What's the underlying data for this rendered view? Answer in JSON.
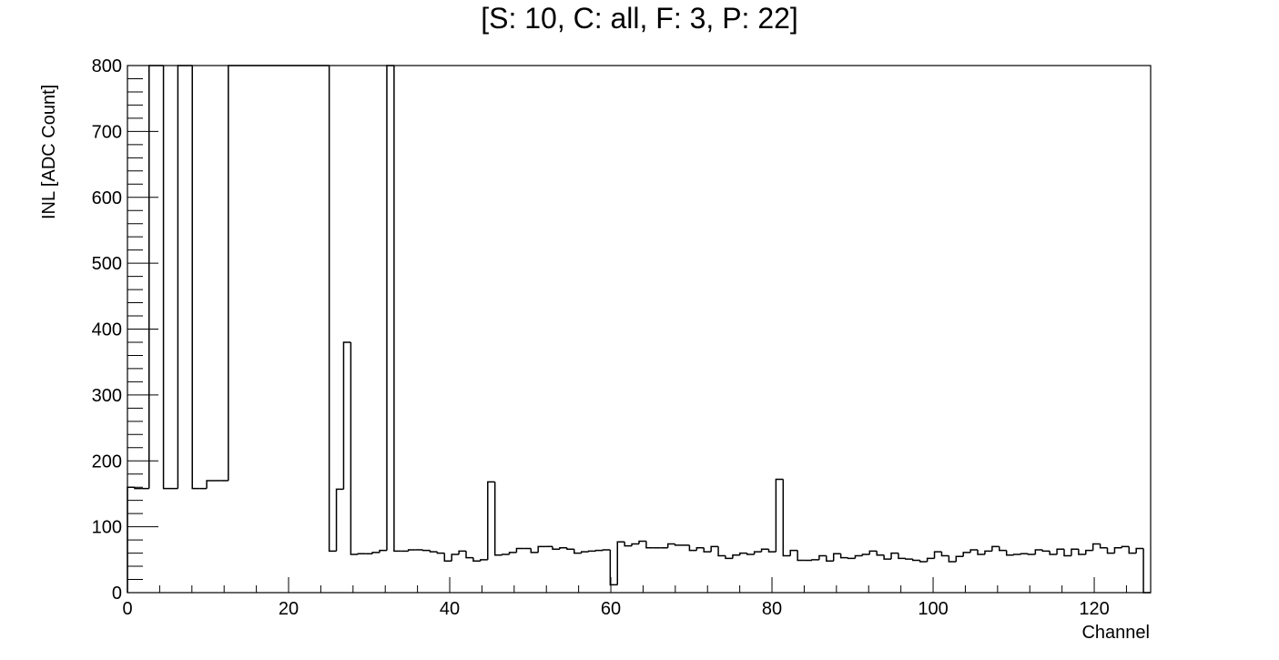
{
  "chart_data": {
    "type": "histogram",
    "title": "[S: 10, C: all, F: 3, P: 22]",
    "xlabel": "Channel",
    "ylabel": "INL [ADC Count]",
    "xlim": [
      0,
      127
    ],
    "ylim": [
      0,
      800
    ],
    "x_ticks": [
      "0",
      "20",
      "40",
      "60",
      "80",
      "100",
      "120"
    ],
    "y_ticks": [
      "0",
      "100",
      "200",
      "300",
      "400",
      "500",
      "600",
      "700",
      "800"
    ],
    "grid": false,
    "legend": "none",
    "line_color": "#000000",
    "bin_width": 1,
    "x_start": 0,
    "values": [
      160,
      158,
      158,
      800,
      800,
      158,
      158,
      800,
      800,
      158,
      158,
      170,
      170,
      170,
      800,
      800,
      800,
      800,
      800,
      800,
      800,
      800,
      800,
      800,
      800,
      800,
      800,
      800,
      63,
      157,
      380,
      58,
      59,
      59,
      61,
      64,
      800,
      63,
      63,
      65,
      65,
      64,
      62,
      60,
      48,
      58,
      63,
      53,
      48,
      50,
      168,
      57,
      58,
      61,
      67,
      67,
      61,
      70,
      70,
      66,
      68,
      66,
      60,
      62,
      63,
      64,
      65,
      12,
      77,
      71,
      74,
      78,
      68,
      68,
      68,
      74,
      72,
      72,
      64,
      68,
      62,
      70,
      56,
      52,
      57,
      60,
      58,
      62,
      66,
      62,
      172,
      56,
      64,
      49,
      49,
      50,
      56,
      48,
      59,
      53,
      52,
      56,
      58,
      63,
      57,
      51,
      60,
      52,
      51,
      49,
      47,
      52,
      62,
      56,
      47,
      55,
      61,
      65,
      58,
      63,
      70,
      64,
      57,
      58,
      59,
      58,
      65,
      63,
      58,
      66,
      56,
      66,
      58,
      64,
      74,
      68,
      60,
      68,
      70,
      60,
      67,
      0
    ],
    "bins_per_unit_note": ""
  }
}
